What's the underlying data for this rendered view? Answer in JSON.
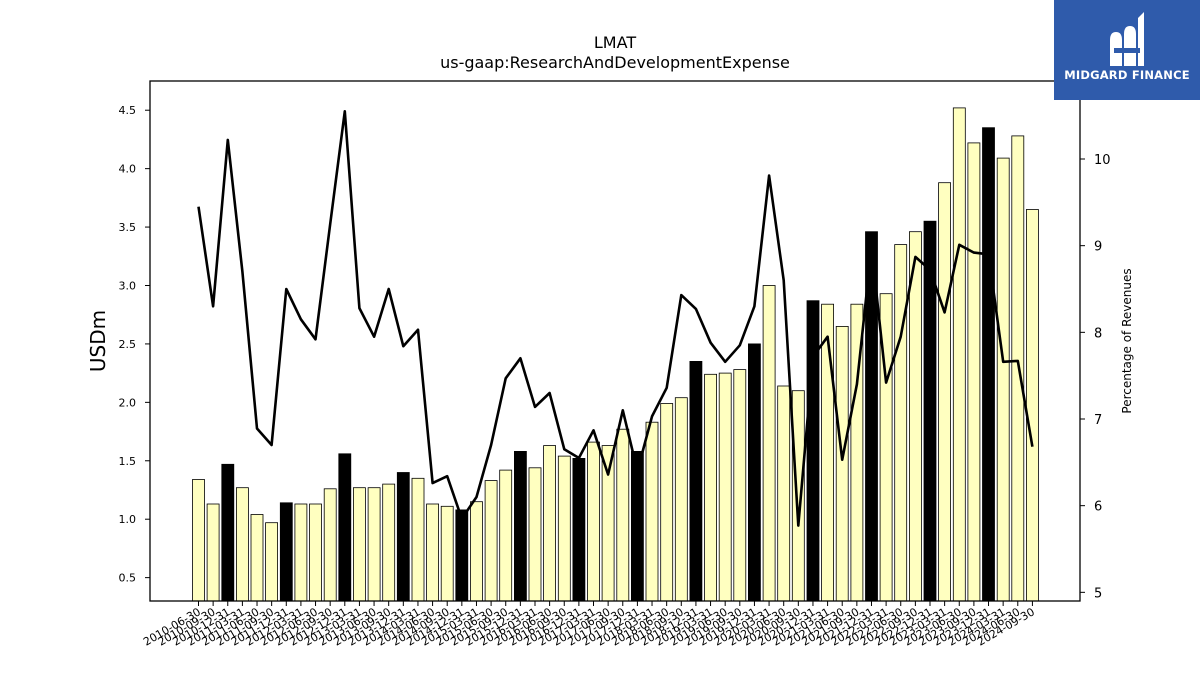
{
  "brand": {
    "name": "MIDGARD FINANCE",
    "bg_color": "#2f5bab"
  },
  "chart_data": {
    "type": "bar",
    "title": "LMAT",
    "subtitle": "us-gaap:ResearchAndDevelopmentExpense",
    "ylabel": "USDm",
    "y2label": "Percentage of Revenues",
    "ylim": [
      0.3,
      4.75
    ],
    "y2lim": [
      4.9,
      10.9
    ],
    "yticks": [
      "0.5",
      "1.0",
      "1.5",
      "2.0",
      "2.5",
      "3.0",
      "3.5",
      "4.0",
      "4.5"
    ],
    "y2ticks": [
      "5",
      "6",
      "7",
      "8",
      "9",
      "10"
    ],
    "colors": {
      "bar_quarter": "#ffffc0",
      "bar_annual": "#000000",
      "line": "#000000"
    },
    "categories": [
      "2010-06-30",
      "2010-09-30",
      "2010-12-31",
      "2011-03-31",
      "2011-06-30",
      "2011-09-30",
      "2011-12-31",
      "2012-03-31",
      "2012-06-30",
      "2012-09-30",
      "2012-12-31",
      "2013-03-31",
      "2013-06-30",
      "2013-09-30",
      "2013-12-31",
      "2014-03-31",
      "2014-06-30",
      "2014-09-30",
      "2014-12-31",
      "2015-03-31",
      "2015-06-30",
      "2015-09-30",
      "2015-12-31",
      "2016-03-31",
      "2016-06-30",
      "2016-09-30",
      "2016-12-31",
      "2017-03-31",
      "2017-06-30",
      "2017-09-30",
      "2017-12-31",
      "2018-03-31",
      "2018-06-30",
      "2018-09-30",
      "2018-12-31",
      "2019-03-31",
      "2019-06-30",
      "2019-09-30",
      "2019-12-31",
      "2020-03-31",
      "2020-06-30",
      "2020-09-30",
      "2020-12-31",
      "2021-03-31",
      "2021-06-30",
      "2021-09-30",
      "2021-12-31",
      "2022-03-31",
      "2022-06-30",
      "2022-09-30",
      "2022-12-31",
      "2023-03-31",
      "2023-06-30",
      "2023-09-30",
      "2023-12-31",
      "2024-03-31",
      "2024-06-30",
      "2024-09-30"
    ],
    "series": [
      {
        "kind": "bar",
        "values": [
          1.34,
          1.13,
          1.47,
          1.27,
          1.04,
          0.97,
          1.14,
          1.13,
          1.13,
          1.26,
          1.56,
          1.27,
          1.27,
          1.3,
          1.4,
          1.35,
          1.13,
          1.11,
          1.08,
          1.15,
          1.33,
          1.42,
          1.58,
          1.44,
          1.63,
          1.54,
          1.52,
          1.66,
          1.63,
          1.77,
          1.58,
          1.83,
          1.99,
          2.04,
          2.35,
          2.24,
          2.25,
          2.28,
          2.5,
          3.0,
          2.14,
          2.1,
          2.87,
          2.84,
          2.65,
          2.84,
          3.46,
          2.93,
          3.35,
          3.46,
          3.55,
          3.88,
          4.52,
          4.22,
          4.35,
          4.09,
          4.28,
          3.65
        ],
        "is_annual": [
          false,
          false,
          true,
          false,
          false,
          false,
          true,
          false,
          false,
          false,
          true,
          false,
          false,
          false,
          true,
          false,
          false,
          false,
          true,
          false,
          false,
          false,
          true,
          false,
          false,
          false,
          true,
          false,
          false,
          false,
          true,
          false,
          false,
          false,
          true,
          false,
          false,
          false,
          true,
          false,
          false,
          false,
          true,
          false,
          false,
          false,
          true,
          false,
          false,
          false,
          true,
          false,
          false,
          false,
          true,
          false,
          false,
          false
        ]
      },
      {
        "kind": "line",
        "axis": "right",
        "values": [
          9.45,
          8.3,
          10.22,
          8.7,
          6.89,
          6.7,
          8.5,
          8.15,
          7.92,
          9.25,
          10.55,
          8.28,
          7.95,
          8.5,
          7.84,
          8.03,
          6.26,
          6.34,
          5.85,
          6.1,
          6.7,
          7.47,
          7.7,
          7.14,
          7.3,
          6.65,
          6.55,
          6.87,
          6.36,
          7.1,
          6.4,
          7.03,
          7.36,
          8.43,
          8.27,
          7.88,
          7.66,
          7.85,
          8.3,
          9.81,
          8.6,
          5.77,
          7.72,
          7.95,
          6.53,
          7.4,
          8.98,
          7.42,
          7.95,
          8.87,
          8.72,
          8.23,
          9.01,
          8.92,
          8.9,
          7.66,
          7.67,
          6.68
        ]
      }
    ]
  }
}
